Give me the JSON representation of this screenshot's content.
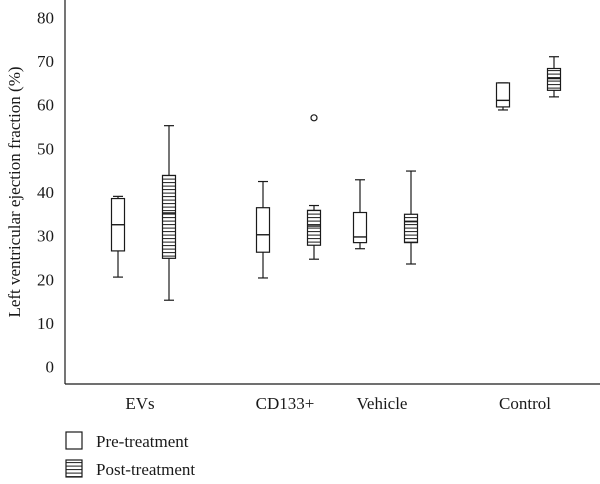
{
  "chart_data": {
    "type": "box",
    "ylabel": "Left ventricular ejection fraction (%)",
    "xlabel": "",
    "ylim": [
      -4,
      84
    ],
    "yticks": [
      0,
      10,
      20,
      30,
      40,
      50,
      60,
      70,
      80
    ],
    "categories": [
      "EVs",
      "CD133+",
      "Vehicle",
      "Control"
    ],
    "legend_placement": "bottom-left",
    "series": [
      {
        "name": "Pre-treatment",
        "pattern": "plain",
        "boxes": [
          {
            "min": 20.5,
            "q1": 26.5,
            "median": 32.5,
            "q3": 38.5,
            "max": 39.0,
            "outliers": []
          },
          {
            "min": 20.3,
            "q1": 26.2,
            "median": 30.2,
            "q3": 36.4,
            "max": 42.4,
            "outliers": []
          },
          {
            "min": 27.0,
            "q1": 28.4,
            "median": 29.7,
            "q3": 35.3,
            "max": 42.8,
            "outliers": []
          },
          {
            "min": 58.8,
            "q1": 59.5,
            "median": 61.0,
            "q3": 65.0,
            "max": 65.0,
            "outliers": []
          }
        ]
      },
      {
        "name": "Post-treatment",
        "pattern": "striped",
        "boxes": [
          {
            "min": 15.2,
            "q1": 24.8,
            "median": 35.2,
            "q3": 43.8,
            "max": 55.2,
            "outliers": []
          },
          {
            "min": 24.6,
            "q1": 27.8,
            "median": 32.2,
            "q3": 35.8,
            "max": 36.9,
            "outliers": [
              57.0
            ]
          },
          {
            "min": 23.5,
            "q1": 28.4,
            "median": 33.2,
            "q3": 34.9,
            "max": 44.8,
            "outliers": []
          },
          {
            "min": 61.8,
            "q1": 63.3,
            "median": 66.0,
            "q3": 68.3,
            "max": 71.0,
            "outliers": []
          }
        ]
      }
    ]
  }
}
